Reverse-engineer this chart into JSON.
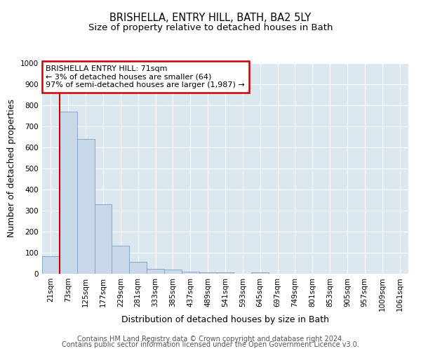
{
  "title": "BRISHELLA, ENTRY HILL, BATH, BA2 5LY",
  "subtitle": "Size of property relative to detached houses in Bath",
  "xlabel": "Distribution of detached houses by size in Bath",
  "ylabel": "Number of detached properties",
  "categories": [
    "21sqm",
    "73sqm",
    "125sqm",
    "177sqm",
    "229sqm",
    "281sqm",
    "333sqm",
    "385sqm",
    "437sqm",
    "489sqm",
    "541sqm",
    "593sqm",
    "645sqm",
    "697sqm",
    "749sqm",
    "801sqm",
    "853sqm",
    "905sqm",
    "957sqm",
    "1009sqm",
    "1061sqm"
  ],
  "values": [
    85,
    770,
    640,
    330,
    135,
    57,
    25,
    20,
    10,
    7,
    8,
    0,
    8,
    0,
    0,
    0,
    0,
    0,
    0,
    0,
    0
  ],
  "bar_color": "#c8d8e8",
  "bar_edge_color": "#7a9fc0",
  "vline_color": "#cc0000",
  "ylim": [
    0,
    1000
  ],
  "yticks": [
    0,
    100,
    200,
    300,
    400,
    500,
    600,
    700,
    800,
    900,
    1000
  ],
  "annotation_text": "BRISHELLA ENTRY HILL: 71sqm\n← 3% of detached houses are smaller (64)\n97% of semi-detached houses are larger (1,987) →",
  "annotation_box_color": "#cc0000",
  "footer_line1": "Contains HM Land Registry data © Crown copyright and database right 2024.",
  "footer_line2": "Contains public sector information licensed under the Open Government Licence v3.0.",
  "background_color": "#ffffff",
  "plot_bg_color": "#dce8f0",
  "grid_color": "#ffffff",
  "title_fontsize": 10.5,
  "subtitle_fontsize": 9.5,
  "label_fontsize": 9,
  "tick_fontsize": 7.5,
  "footer_fontsize": 7,
  "ann_fontsize": 8
}
